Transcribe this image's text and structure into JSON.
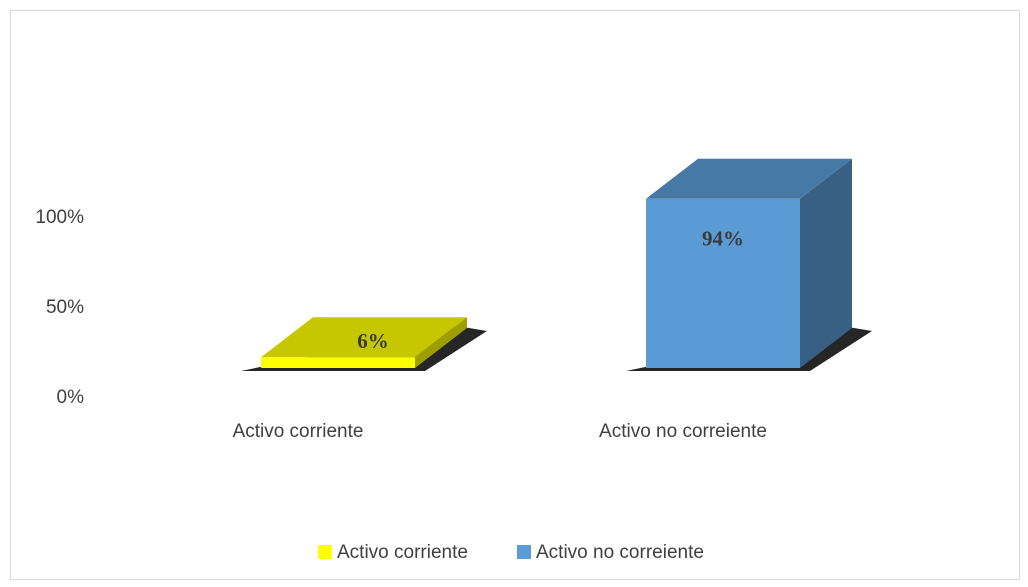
{
  "chart_data": {
    "type": "bar3d",
    "categories": [
      "Activo corriente",
      "Activo no correiente"
    ],
    "values": [
      6,
      94
    ],
    "value_labels": [
      "6%",
      "94%"
    ],
    "colors": [
      "#ffff00",
      "#5b9bd5"
    ],
    "ylim": [
      0,
      100
    ],
    "yticks": [
      {
        "value": 0,
        "label": "0%"
      },
      {
        "value": 50,
        "label": "50%"
      },
      {
        "value": 100,
        "label": "100%"
      }
    ],
    "legend": "bottom"
  }
}
